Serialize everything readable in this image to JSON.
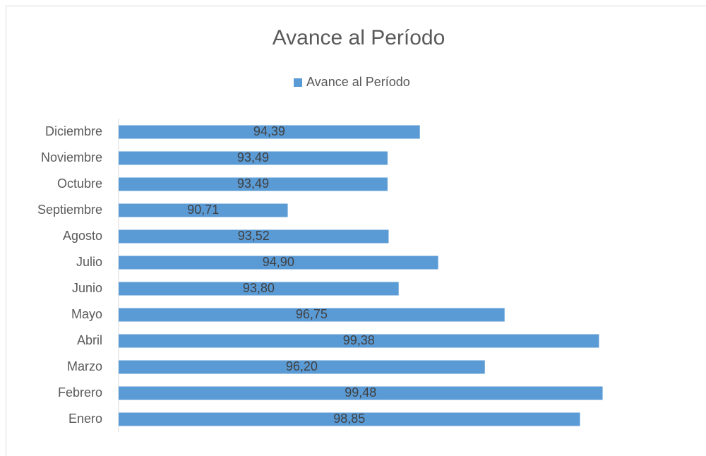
{
  "chart_data": {
    "type": "bar",
    "orientation": "horizontal",
    "title": "Avance al Período",
    "categories": [
      "Enero",
      "Febrero",
      "Marzo",
      "Abril",
      "Mayo",
      "Junio",
      "Julio",
      "Agosto",
      "Septiembre",
      "Octubre",
      "Noviembre",
      "Diciembre"
    ],
    "series": [
      {
        "name": "Avance al Período",
        "color": "#5b9bd5",
        "values": [
          98.85,
          99.48,
          96.2,
          99.38,
          96.75,
          93.8,
          94.9,
          93.52,
          90.71,
          93.49,
          93.49,
          94.39
        ],
        "value_labels": [
          "98,85",
          "99,48",
          "96,20",
          "99,38",
          "96,75",
          "93,80",
          "94,90",
          "93,52",
          "90,71",
          "93,49",
          "93,49",
          "94,39"
        ]
      }
    ],
    "xlim": [
      86,
      100
    ],
    "legend": "top"
  }
}
